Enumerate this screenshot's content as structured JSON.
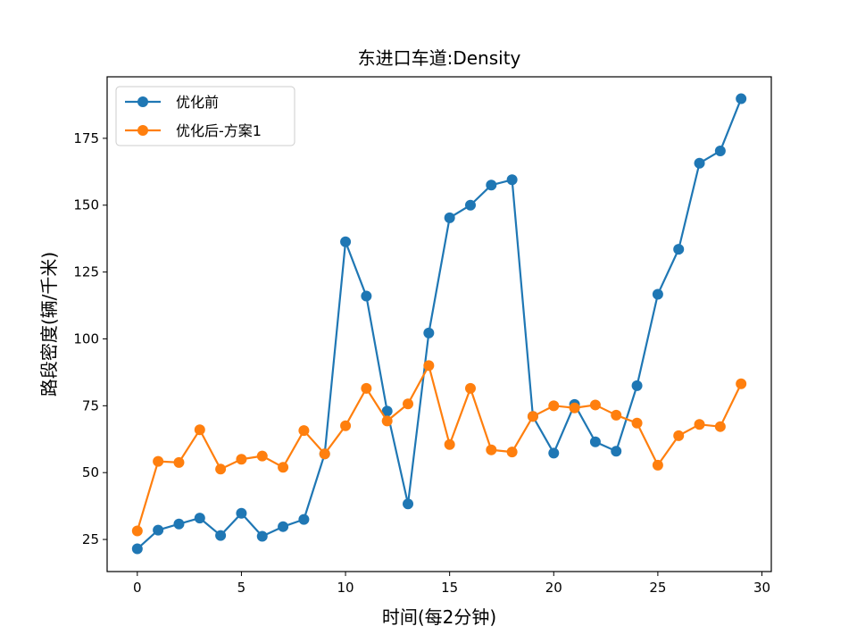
{
  "chart_data": {
    "type": "line",
    "title": "东进口车道:Density",
    "xlabel": "时间(每2分钟)",
    "ylabel": "路段密度(辆/千米)",
    "xlim": [
      -1.45,
      30.45
    ],
    "ylim": [
      13,
      198
    ],
    "xticks": [
      0,
      5,
      10,
      15,
      20,
      25,
      30
    ],
    "yticks": [
      25,
      50,
      75,
      100,
      125,
      150,
      175
    ],
    "grid": false,
    "legend_position": "top-left",
    "x": [
      0,
      1,
      2,
      3,
      4,
      5,
      6,
      7,
      8,
      9,
      10,
      11,
      12,
      13,
      14,
      15,
      16,
      17,
      18,
      19,
      20,
      21,
      22,
      23,
      24,
      25,
      26,
      27,
      28,
      29
    ],
    "series": [
      {
        "name": "优化前",
        "color": "#1f77b4",
        "marker": "circle",
        "values": [
          21.5,
          28.5,
          30.8,
          33,
          26.5,
          34.8,
          26.2,
          29.8,
          32.5,
          57,
          136.3,
          116,
          73,
          38.3,
          102.2,
          145.3,
          150,
          157.5,
          159.5,
          71,
          57.3,
          75.5,
          61.5,
          58,
          82.5,
          116.7,
          133.5,
          165.7,
          170.3,
          189.8
        ]
      },
      {
        "name": "优化后-方案1",
        "color": "#ff7f0e",
        "marker": "circle",
        "values": [
          28.2,
          54.2,
          53.8,
          66,
          51.3,
          55,
          56.2,
          52,
          65.7,
          57,
          67.5,
          81.5,
          69.3,
          75.7,
          90,
          60.5,
          81.5,
          58.5,
          57.7,
          71,
          75,
          74.2,
          75.3,
          71.5,
          68.5,
          52.8,
          63.8,
          68,
          67.2,
          83.2
        ]
      }
    ]
  }
}
